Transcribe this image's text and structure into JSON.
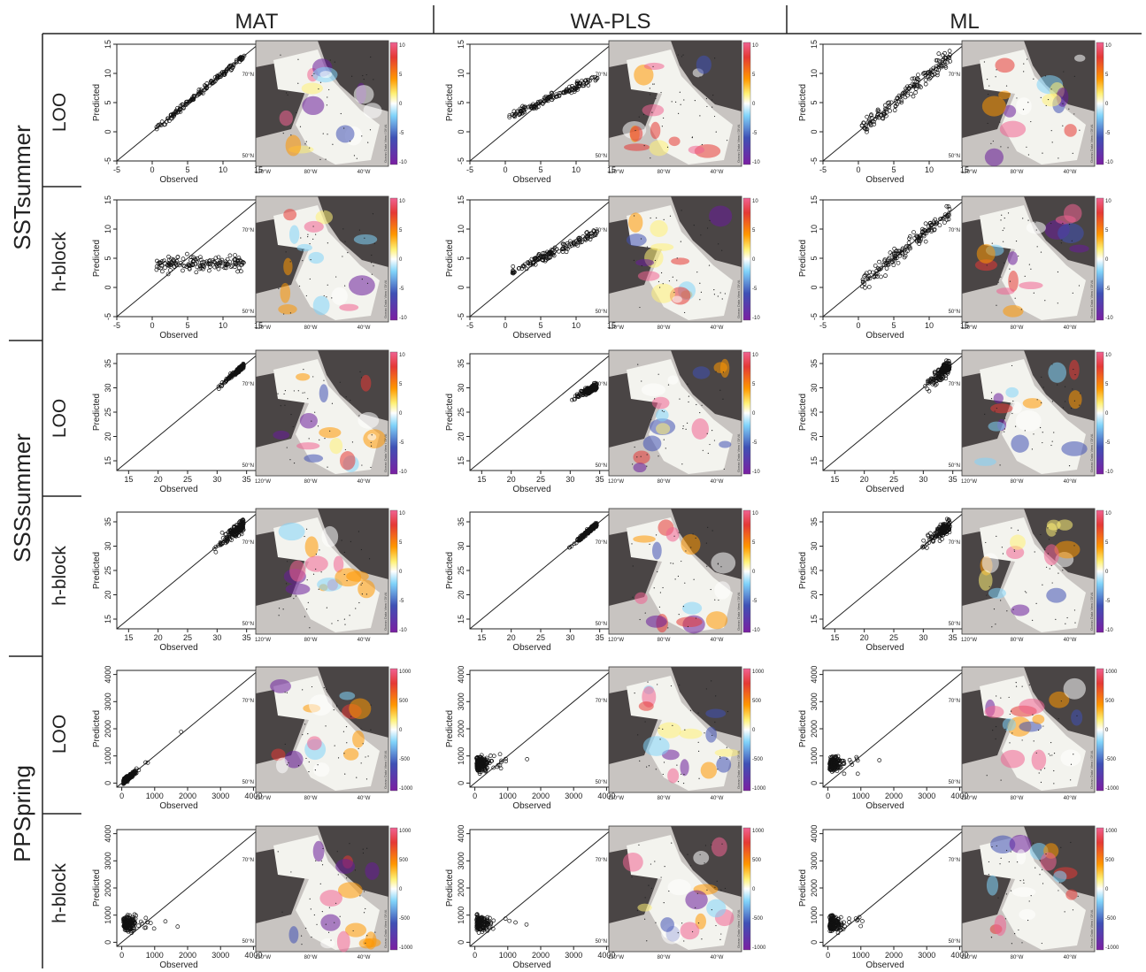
{
  "figure": {
    "column_headers": [
      "MAT",
      "WA-PLS",
      "ML"
    ],
    "variable_groups": [
      "SSTsummer",
      "SSSsummer",
      "PPSpring"
    ],
    "validation_rows": [
      "LOO",
      "h-block"
    ]
  },
  "axis_labels": {
    "x": "Observed",
    "y": "Predicted"
  },
  "map_labels": {
    "lat_top": "70°N",
    "lat_bottom": "50°N",
    "lon_left": "120°W",
    "lon_mid": "80°W",
    "lon_right": "40°W",
    "credit": "Ocean Data View / DIVA"
  },
  "colorbar_ticks": {
    "SSTsummer": [
      "10",
      "5",
      "0",
      "-5",
      "-10"
    ],
    "SSSsummer": [
      "10",
      "5",
      "0",
      "-5",
      "-10"
    ],
    "PPSpring": [
      "1000",
      "500",
      "0",
      "-500",
      "-1000"
    ]
  },
  "colors": {
    "diverging": [
      "#6a1b9a",
      "#3f51b5",
      "#81d4fa",
      "#ffffff",
      "#fff176",
      "#ff9800",
      "#e53935",
      "#f06292"
    ],
    "land": "#4a4545",
    "sea_background": "#c8c4c1"
  },
  "chart_data": [
    {
      "type": "scatter",
      "variable": "SSTsummer",
      "validation": "LOO",
      "method": "MAT",
      "xlim": [
        -5,
        15
      ],
      "ylim": [
        -5,
        15
      ],
      "xticks": [
        -5,
        0,
        5,
        10,
        15
      ],
      "yticks": [
        -5,
        0,
        5,
        10,
        15
      ],
      "xlabel": "Observed",
      "ylabel": "Predicted",
      "reference_line": "1:1",
      "pattern": "tight"
    },
    {
      "type": "scatter",
      "variable": "SSTsummer",
      "validation": "LOO",
      "method": "WA-PLS",
      "xlim": [
        -5,
        15
      ],
      "ylim": [
        -5,
        15
      ],
      "xticks": [
        -5,
        0,
        5,
        10,
        15
      ],
      "yticks": [
        -5,
        0,
        5,
        10,
        15
      ],
      "xlabel": "Observed",
      "ylabel": "Predicted",
      "reference_line": "1:1",
      "pattern": "compressed"
    },
    {
      "type": "scatter",
      "variable": "SSTsummer",
      "validation": "LOO",
      "method": "ML",
      "xlim": [
        -5,
        15
      ],
      "ylim": [
        -5,
        15
      ],
      "xticks": [
        -5,
        0,
        5,
        10,
        15
      ],
      "yticks": [
        -5,
        0,
        5,
        10,
        15
      ],
      "xlabel": "Observed",
      "ylabel": "Predicted",
      "reference_line": "1:1",
      "pattern": "wide"
    },
    {
      "type": "scatter",
      "variable": "SSTsummer",
      "validation": "h-block",
      "method": "MAT",
      "xlim": [
        -5,
        15
      ],
      "ylim": [
        -5,
        15
      ],
      "xticks": [
        -5,
        0,
        5,
        10,
        15
      ],
      "yticks": [
        -5,
        0,
        5,
        10,
        15
      ],
      "xlabel": "Observed",
      "ylabel": "Predicted",
      "reference_line": "1:1",
      "pattern": "flat"
    },
    {
      "type": "scatter",
      "variable": "SSTsummer",
      "validation": "h-block",
      "method": "WA-PLS",
      "xlim": [
        -5,
        15
      ],
      "ylim": [
        -5,
        15
      ],
      "xticks": [
        -5,
        0,
        5,
        10,
        15
      ],
      "yticks": [
        -5,
        0,
        5,
        10,
        15
      ],
      "xlabel": "Observed",
      "ylabel": "Predicted",
      "reference_line": "1:1",
      "pattern": "compressed"
    },
    {
      "type": "scatter",
      "variable": "SSTsummer",
      "validation": "h-block",
      "method": "ML",
      "xlim": [
        -5,
        15
      ],
      "ylim": [
        -5,
        15
      ],
      "xticks": [
        -5,
        0,
        5,
        10,
        15
      ],
      "yticks": [
        -5,
        0,
        5,
        10,
        15
      ],
      "xlabel": "Observed",
      "ylabel": "Predicted",
      "reference_line": "1:1",
      "pattern": "wide"
    },
    {
      "type": "scatter",
      "variable": "SSSsummer",
      "validation": "LOO",
      "method": "MAT",
      "xlim": [
        13,
        37
      ],
      "ylim": [
        13,
        37
      ],
      "xticks": [
        15,
        20,
        25,
        30,
        35
      ],
      "yticks": [
        15,
        20,
        25,
        30,
        35
      ],
      "xlabel": "Observed",
      "ylabel": "Predicted",
      "reference_line": "1:1",
      "pattern": "tight"
    },
    {
      "type": "scatter",
      "variable": "SSSsummer",
      "validation": "LOO",
      "method": "WA-PLS",
      "xlim": [
        13,
        37
      ],
      "ylim": [
        13,
        37
      ],
      "xticks": [
        15,
        20,
        25,
        30,
        35
      ],
      "yticks": [
        15,
        20,
        25,
        30,
        35
      ],
      "xlabel": "Observed",
      "ylabel": "Predicted",
      "reference_line": "1:1",
      "pattern": "compressed"
    },
    {
      "type": "scatter",
      "variable": "SSSsummer",
      "validation": "LOO",
      "method": "ML",
      "xlim": [
        13,
        37
      ],
      "ylim": [
        13,
        37
      ],
      "xticks": [
        15,
        20,
        25,
        30,
        35
      ],
      "yticks": [
        15,
        20,
        25,
        30,
        35
      ],
      "xlabel": "Observed",
      "ylabel": "Predicted",
      "reference_line": "1:1",
      "pattern": "wide"
    },
    {
      "type": "scatter",
      "variable": "SSSsummer",
      "validation": "h-block",
      "method": "MAT",
      "xlim": [
        13,
        37
      ],
      "ylim": [
        13,
        37
      ],
      "xticks": [
        15,
        20,
        25,
        30,
        35
      ],
      "yticks": [
        15,
        20,
        25,
        30,
        35
      ],
      "xlabel": "Observed",
      "ylabel": "Predicted",
      "reference_line": "1:1",
      "pattern": "wide"
    },
    {
      "type": "scatter",
      "variable": "SSSsummer",
      "validation": "h-block",
      "method": "WA-PLS",
      "xlim": [
        13,
        37
      ],
      "ylim": [
        13,
        37
      ],
      "xticks": [
        15,
        20,
        25,
        30,
        35
      ],
      "yticks": [
        15,
        20,
        25,
        30,
        35
      ],
      "xlabel": "Observed",
      "ylabel": "Predicted",
      "reference_line": "1:1",
      "pattern": "tight"
    },
    {
      "type": "scatter",
      "variable": "SSSsummer",
      "validation": "h-block",
      "method": "ML",
      "xlim": [
        13,
        37
      ],
      "ylim": [
        13,
        37
      ],
      "xticks": [
        15,
        20,
        25,
        30,
        35
      ],
      "yticks": [
        15,
        20,
        25,
        30,
        35
      ],
      "xlabel": "Observed",
      "ylabel": "Predicted",
      "reference_line": "1:1",
      "pattern": "wide"
    },
    {
      "type": "scatter",
      "variable": "PPSpring",
      "validation": "LOO",
      "method": "MAT",
      "xlim": [
        -150,
        4150
      ],
      "ylim": [
        -150,
        4150
      ],
      "xticks": [
        0,
        1000,
        2000,
        3000,
        4000
      ],
      "yticks": [
        0,
        1000,
        2000,
        3000,
        4000
      ],
      "xlabel": "Observed",
      "ylabel": "Predicted",
      "reference_line": "1:1",
      "pattern": "tight"
    },
    {
      "type": "scatter",
      "variable": "PPSpring",
      "validation": "LOO",
      "method": "WA-PLS",
      "xlim": [
        -150,
        4150
      ],
      "ylim": [
        -150,
        4150
      ],
      "xticks": [
        0,
        1000,
        2000,
        3000,
        4000
      ],
      "yticks": [
        0,
        1000,
        2000,
        3000,
        4000
      ],
      "xlabel": "Observed",
      "ylabel": "Predicted",
      "reference_line": "1:1",
      "pattern": "flat"
    },
    {
      "type": "scatter",
      "variable": "PPSpring",
      "validation": "LOO",
      "method": "ML",
      "xlim": [
        -150,
        4150
      ],
      "ylim": [
        -150,
        4150
      ],
      "xticks": [
        0,
        1000,
        2000,
        3000,
        4000
      ],
      "yticks": [
        0,
        1000,
        2000,
        3000,
        4000
      ],
      "xlabel": "Observed",
      "ylabel": "Predicted",
      "reference_line": "1:1",
      "pattern": "flat"
    },
    {
      "type": "scatter",
      "variable": "PPSpring",
      "validation": "h-block",
      "method": "MAT",
      "xlim": [
        -150,
        4150
      ],
      "ylim": [
        -150,
        4150
      ],
      "xticks": [
        0,
        1000,
        2000,
        3000,
        4000
      ],
      "yticks": [
        0,
        1000,
        2000,
        3000,
        4000
      ],
      "xlabel": "Observed",
      "ylabel": "Predicted",
      "reference_line": "1:1",
      "pattern": "flat"
    },
    {
      "type": "scatter",
      "variable": "PPSpring",
      "validation": "h-block",
      "method": "WA-PLS",
      "xlim": [
        -150,
        4150
      ],
      "ylim": [
        -150,
        4150
      ],
      "xticks": [
        0,
        1000,
        2000,
        3000,
        4000
      ],
      "yticks": [
        0,
        1000,
        2000,
        3000,
        4000
      ],
      "xlabel": "Observed",
      "ylabel": "Predicted",
      "reference_line": "1:1",
      "pattern": "flat"
    },
    {
      "type": "scatter",
      "variable": "PPSpring",
      "validation": "h-block",
      "method": "ML",
      "xlim": [
        -150,
        4150
      ],
      "ylim": [
        -150,
        4150
      ],
      "xticks": [
        0,
        1000,
        2000,
        3000,
        4000
      ],
      "yticks": [
        0,
        1000,
        2000,
        3000,
        4000
      ],
      "xlabel": "Observed",
      "ylabel": "Predicted",
      "reference_line": "1:1",
      "pattern": "flat"
    }
  ]
}
